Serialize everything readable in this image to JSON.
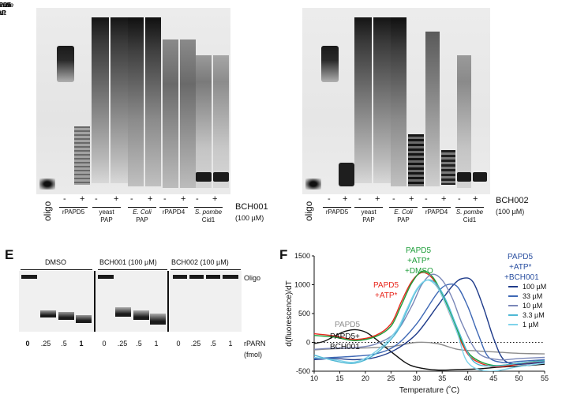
{
  "gel_top_left": {
    "treatment_label": "BCH001",
    "treatment_conc": "(100 µM)",
    "oligo_label": "oligo",
    "signs": [
      "-",
      "+",
      "-",
      "+",
      "-",
      "+",
      "-",
      "+",
      "-",
      "+"
    ],
    "groups": [
      {
        "line1": "rPAPD5",
        "line2": ""
      },
      {
        "line1": "yeast",
        "line2": "PAP"
      },
      {
        "line1": "E. Coli",
        "line2": "PAP"
      },
      {
        "line1": "rPAPD4",
        "line2": ""
      },
      {
        "line1": "S. pombe",
        "line2": "Cid1"
      }
    ]
  },
  "gel_top_right": {
    "treatment_label": "BCH002",
    "treatment_conc": "(100 µM)",
    "oligo_label": "oligo",
    "signs": [
      "-",
      "+",
      "-",
      "+",
      "-",
      "+",
      "-",
      "+",
      "-",
      "+"
    ],
    "groups": [
      {
        "line1": "rPAPD5",
        "line2": ""
      },
      {
        "line1": "yeast",
        "line2": "PAP"
      },
      {
        "line1": "E. Coli",
        "line2": "PAP"
      },
      {
        "line1": "rPAPD4",
        "line2": ""
      },
      {
        "line1": "S. pombe",
        "line2": "Cid1"
      }
    ]
  },
  "panel_e": {
    "letter": "E",
    "group_dmso": "DMSO",
    "group_bch001": "BCH001 (100 µM)",
    "group_bch002": "BCH002 (100 µM)",
    "oligo_label": "Oligo",
    "rparn_label": "rPARN",
    "fmol_label": "(fmol)",
    "amounts": [
      "0",
      ".25",
      ".5",
      "1",
      "0",
      ".25",
      ".5",
      "1",
      "0",
      ".25",
      ".5",
      "1"
    ]
  },
  "panel_f": {
    "letter": "F",
    "annotations": {
      "papd5": "PAPD5",
      "papd5_bch_1": "PAPD5+",
      "papd5_bch_2": "BCH001",
      "atp_1": "PAPD5",
      "atp_2": "+ATP*",
      "dmso_1": "PAPD5",
      "dmso_2": "+ATP*",
      "dmso_3": "+DMSO",
      "legend_title_1": "PAPD5",
      "legend_title_2": "+ATP*",
      "legend_title_3": "+BCH001"
    },
    "colors": {
      "gray": "#8c8c8c",
      "black": "#111111",
      "red": "#e8281e",
      "green": "#1e9e3a",
      "blue_title": "#2a4fa0"
    },
    "chart_data": {
      "type": "line",
      "xlabel": "Temperature (˚C)",
      "ylabel": "d(fluorescence)/dT",
      "xlim": [
        10,
        55
      ],
      "ylim": [
        -500,
        1500
      ],
      "x_ticks": [
        10,
        15,
        20,
        25,
        30,
        35,
        40,
        45,
        50,
        55
      ],
      "y_ticks": [
        -500,
        0,
        500,
        1000,
        1500
      ],
      "reference_line_y": 0,
      "legend": [
        "100 µM",
        "33 µM",
        "10 µM",
        "3.3 µM",
        "1 µM"
      ],
      "series": [
        {
          "name": "PAPD5",
          "color": "#8c8c8c",
          "x": [
            10,
            14,
            18,
            22,
            26,
            30,
            34,
            38,
            42,
            46,
            50,
            55
          ],
          "y": [
            -130,
            -110,
            -100,
            -90,
            -60,
            0,
            -20,
            -120,
            -150,
            -170,
            -190,
            -200
          ]
        },
        {
          "name": "PAPD5+BCH001",
          "color": "#111111",
          "x": [
            10,
            12,
            14,
            16,
            18,
            20,
            22,
            24,
            26,
            28,
            30,
            34,
            38,
            42,
            46,
            50,
            55
          ],
          "y": [
            -20,
            20,
            110,
            190,
            220,
            180,
            60,
            -90,
            -230,
            -360,
            -430,
            -480,
            -470,
            -460,
            -430,
            -410,
            -380
          ]
        },
        {
          "name": "PAPD5+ATP*",
          "color": "#e8281e",
          "x": [
            10,
            14,
            18,
            22,
            25,
            27,
            29,
            31,
            33,
            35,
            37,
            39,
            41,
            45,
            50,
            55
          ],
          "y": [
            150,
            110,
            50,
            120,
            320,
            700,
            1050,
            1210,
            1120,
            800,
            380,
            -50,
            -290,
            -420,
            -380,
            -330
          ]
        },
        {
          "name": "PAPD5+ATP*+DMSO",
          "color": "#1e9e3a",
          "x": [
            10,
            14,
            18,
            22,
            25,
            27,
            29,
            31,
            33,
            35,
            37,
            39,
            41,
            45,
            50,
            55
          ],
          "y": [
            120,
            90,
            30,
            100,
            280,
            640,
            1020,
            1230,
            1150,
            840,
            420,
            -10,
            -260,
            -400,
            -360,
            -310
          ]
        },
        {
          "name": "100 µM",
          "color": "#1f3b8a",
          "x": [
            10,
            14,
            18,
            22,
            26,
            30,
            34,
            37,
            39,
            41,
            43,
            45,
            47,
            50,
            55
          ],
          "y": [
            -300,
            -280,
            -300,
            -260,
            -120,
            150,
            620,
            980,
            1110,
            1050,
            620,
            80,
            -300,
            -380,
            -340
          ]
        },
        {
          "name": "33 µM",
          "color": "#3e68b5",
          "x": [
            10,
            14,
            18,
            22,
            26,
            30,
            34,
            36,
            38,
            40,
            42,
            44,
            47,
            50,
            55
          ],
          "y": [
            -280,
            -260,
            -240,
            -200,
            -50,
            320,
            850,
            1000,
            960,
            620,
            150,
            -250,
            -350,
            -330,
            -300
          ]
        },
        {
          "name": "10 µM",
          "color": "#7a87b8",
          "x": [
            10,
            14,
            18,
            22,
            26,
            29,
            31,
            33,
            35,
            37,
            39,
            42,
            46,
            50,
            55
          ],
          "y": [
            -120,
            -100,
            -90,
            -30,
            180,
            620,
            1000,
            1180,
            1080,
            760,
            300,
            -180,
            -300,
            -280,
            -260
          ]
        },
        {
          "name": "3.3 µM",
          "color": "#4fb8d4",
          "x": [
            10,
            14,
            18,
            22,
            26,
            28,
            30,
            32,
            34,
            36,
            38,
            41,
            45,
            50,
            55
          ],
          "y": [
            -220,
            -320,
            -360,
            -200,
            160,
            520,
            900,
            1080,
            1000,
            680,
            240,
            -320,
            -410,
            -360,
            -320
          ]
        },
        {
          "name": "1 µM",
          "color": "#7fd3ea",
          "x": [
            10,
            14,
            18,
            22,
            26,
            28,
            30,
            32,
            34,
            36,
            38,
            40,
            44,
            50,
            55
          ],
          "y": [
            -260,
            -300,
            -340,
            -160,
            200,
            560,
            920,
            1080,
            960,
            600,
            150,
            -350,
            -500,
            -420,
            -360
          ]
        }
      ]
    }
  }
}
